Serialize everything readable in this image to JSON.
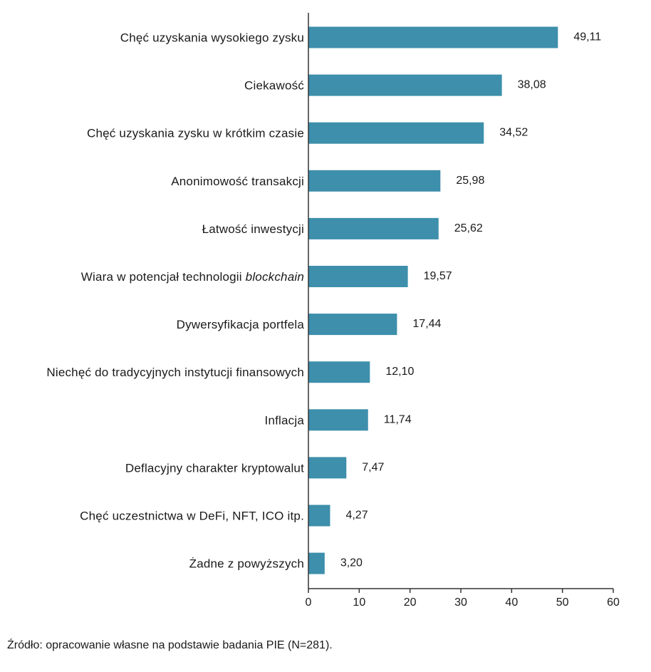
{
  "chart_data": {
    "type": "bar",
    "orientation": "horizontal",
    "categories": [
      "Chęć uzyskania wysokiego zysku",
      "Ciekawość",
      "Chęć uzyskania zysku w krótkim czasie",
      "Anonimowość transakcji",
      "Łatwość inwestycji",
      "Wiara w potencjał technologii blockchain",
      "Dywersyfikacja portfela",
      "Niechęć do tradycyjnych instytucji finansowych",
      "Inflacja",
      "Deflacyjny charakter kryptowalut",
      "Chęć uczestnictwa w DeFi, NFT, ICO itp.",
      "Żadne z powyższych"
    ],
    "category_parts": [
      [
        {
          "text": "Chęć uzyskania wysokiego zysku",
          "italic": false
        }
      ],
      [
        {
          "text": "Ciekawość",
          "italic": false
        }
      ],
      [
        {
          "text": "Chęć uzyskania zysku w krótkim czasie",
          "italic": false
        }
      ],
      [
        {
          "text": "Anonimowość transakcji",
          "italic": false
        }
      ],
      [
        {
          "text": "Łatwość inwestycji",
          "italic": false
        }
      ],
      [
        {
          "text": "Wiara w potencjał technologii ",
          "italic": false
        },
        {
          "text": "blockchain",
          "italic": true
        }
      ],
      [
        {
          "text": "Dywersyfikacja portfela",
          "italic": false
        }
      ],
      [
        {
          "text": "Niechęć do tradycyjnych instytucji finansowych",
          "italic": false
        }
      ],
      [
        {
          "text": "Inflacja",
          "italic": false
        }
      ],
      [
        {
          "text": "Deflacyjny charakter kryptowalut",
          "italic": false
        }
      ],
      [
        {
          "text": "Chęć uczestnictwa w DeFi, NFT, ICO itp.",
          "italic": false
        }
      ],
      [
        {
          "text": "Żadne z powyższych",
          "italic": false
        }
      ]
    ],
    "values": [
      49.11,
      38.08,
      34.52,
      25.98,
      25.62,
      19.57,
      17.44,
      12.1,
      11.74,
      7.47,
      4.27,
      3.2
    ],
    "value_labels": [
      "49,11",
      "38,08",
      "34,52",
      "25,98",
      "25,62",
      "19,57",
      "17,44",
      "12,10",
      "11,74",
      "7,47",
      "4,27",
      "3,20"
    ],
    "xlim": [
      0,
      60
    ],
    "x_ticks": [
      0,
      10,
      20,
      30,
      40,
      50,
      60
    ],
    "x_tick_labels": [
      "0",
      "10",
      "20",
      "30",
      "40",
      "50",
      "60"
    ],
    "grid": false,
    "bar_color": "#3d8fab",
    "axis_color": "#333333"
  },
  "source": "Źródło: opracowanie własne na podstawie badania PIE (N=281)."
}
